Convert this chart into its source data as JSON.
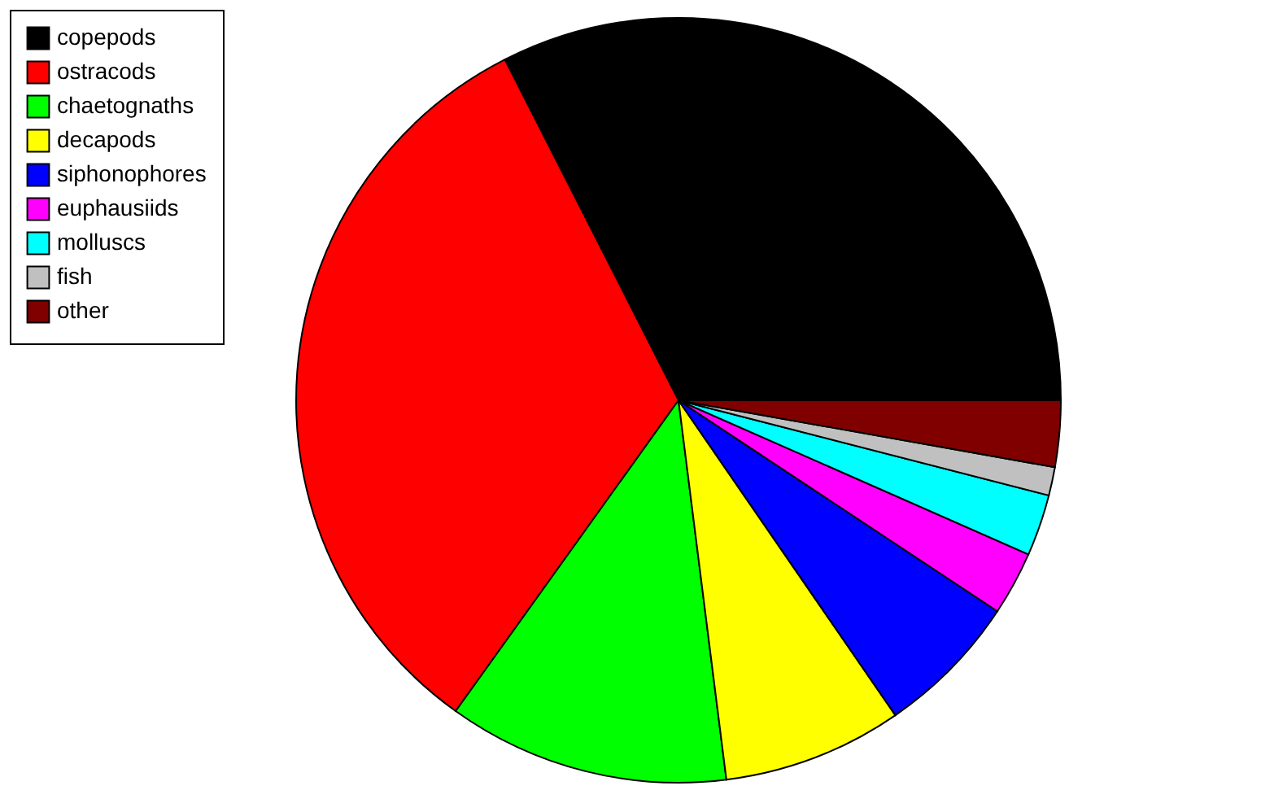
{
  "chart_data": {
    "type": "pie",
    "categories": [
      "copepods",
      "ostracods",
      "chaetognaths",
      "decapods",
      "siphonophores",
      "euphausiids",
      "molluscs",
      "fish",
      "other"
    ],
    "values": [
      32.5,
      32.6,
      11.9,
      7.6,
      6.1,
      2.7,
      2.6,
      1.2,
      2.8
    ],
    "colors": [
      "#000000",
      "#ff0000",
      "#00ff00",
      "#ffff00",
      "#0000ff",
      "#ff00ff",
      "#00ffff",
      "#c0c0c0",
      "#800000"
    ],
    "legend": "left"
  }
}
